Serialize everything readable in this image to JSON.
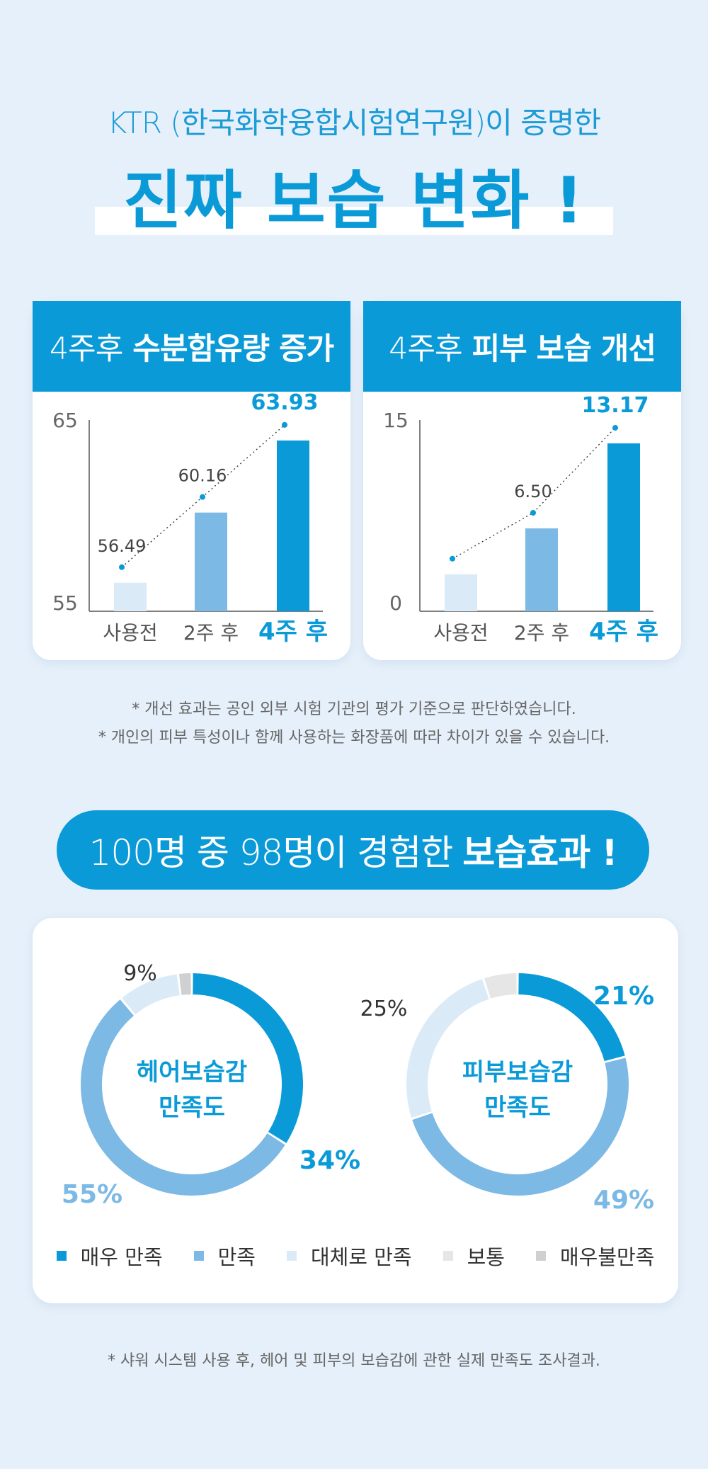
{
  "header": {
    "subtitle": "KTR (한국화학융합시험연구원)이 증명한",
    "headline": "진짜 보습 변화 !"
  },
  "cards": [
    {
      "prefix": "4주후",
      "title": "수분함유량 증가"
    },
    {
      "prefix": "4주후",
      "title": "피부 보습 개선"
    }
  ],
  "notes": {
    "line1": "* 개선 효과는 공인 외부 시험 기관의 평가 기준으로 판단하였습니다.",
    "line2": "* 개인의 피부 특성이나 함께 사용하는 화장품에 따라 차이가 있을 수 있습니다."
  },
  "pill": {
    "prefix": "100명 중 98명이 경험한",
    "bold": "보습효과 !"
  },
  "legend": [
    {
      "label": "매우 만족",
      "color": "#0a9ad8"
    },
    {
      "label": "만족",
      "color": "#7db9e5"
    },
    {
      "label": "대체로 만족",
      "color": "#dbeaf7"
    },
    {
      "label": "보통",
      "color": "#e6e6e6"
    },
    {
      "label": "매우불만족",
      "color": "#d0d0d0"
    }
  ],
  "footnote": "* 샤워 시스템 사용 후, 헤어 및 피부의 보습감에 관한 실제 만족도 조사결과.",
  "chart_data": [
    {
      "type": "bar",
      "categories": [
        "사용전",
        "2주 후",
        "4주 후"
      ],
      "values": [
        56.49,
        60.16,
        63.93
      ],
      "value_labels": [
        "56.49",
        "60.16",
        "63.93"
      ],
      "ylim": [
        55,
        65
      ],
      "yticks": [
        "55",
        "65"
      ],
      "colors": [
        "#dbeaf7",
        "#7db9e5",
        "#0a9ad8"
      ],
      "grid": false,
      "trend_line": "dotted"
    },
    {
      "type": "bar",
      "categories": [
        "사용전",
        "2주 후",
        "4주 후"
      ],
      "values": [
        2.9,
        6.5,
        13.17
      ],
      "value_labels": [
        "",
        "6.50",
        "13.17"
      ],
      "ylim": [
        0,
        15
      ],
      "yticks": [
        "0",
        "15"
      ],
      "colors": [
        "#dbeaf7",
        "#7db9e5",
        "#0a9ad8"
      ],
      "grid": false,
      "trend_line": "dotted"
    },
    {
      "type": "pie",
      "center_label": [
        "헤어보습감",
        "만족도"
      ],
      "slices": [
        {
          "name": "매우 만족",
          "value": 34,
          "label": "34%"
        },
        {
          "name": "만족",
          "value": 55,
          "label": "55%"
        },
        {
          "name": "대체로 만족",
          "value": 9,
          "label": "9%"
        },
        {
          "name": "보통",
          "value": 0,
          "label": ""
        },
        {
          "name": "매우불만족",
          "value": 2,
          "label": ""
        }
      ]
    },
    {
      "type": "pie",
      "center_label": [
        "피부보습감",
        "만족도"
      ],
      "slices": [
        {
          "name": "매우 만족",
          "value": 21,
          "label": "21%"
        },
        {
          "name": "만족",
          "value": 49,
          "label": "49%"
        },
        {
          "name": "대체로 만족",
          "value": 25,
          "label": "25%"
        },
        {
          "name": "보통",
          "value": 5,
          "label": ""
        },
        {
          "name": "매우불만족",
          "value": 0,
          "label": ""
        }
      ]
    }
  ]
}
